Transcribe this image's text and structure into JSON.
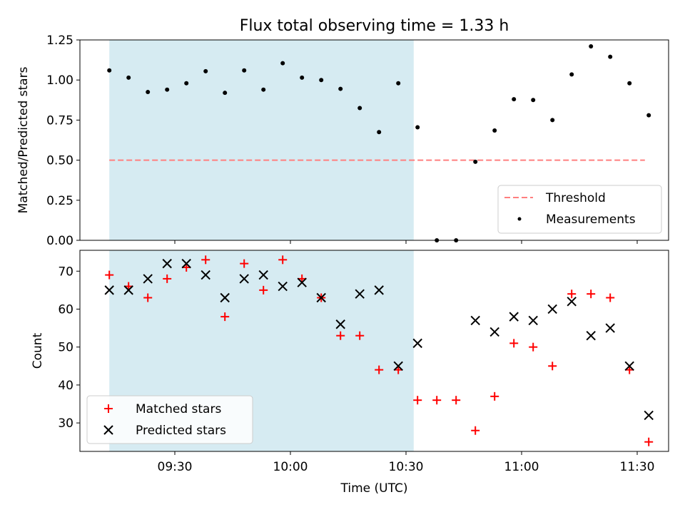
{
  "colors": {
    "shade": "#add8e6",
    "threshold": "#ff7f7f",
    "measurement": "#000000",
    "matched": "#ff0000",
    "predicted": "#000000"
  },
  "chart_data": [
    {
      "type": "scatter",
      "title": "Flux total observing time = 1.33 h",
      "xlabel": "",
      "ylabel": "Matched/Predicted stars",
      "ylim": [
        0,
        1.25
      ],
      "yticks": [
        "0.00",
        "0.25",
        "0.50",
        "0.75",
        "1.00",
        "1.25"
      ],
      "shaded_span": {
        "start": "09:13",
        "end": "10:32"
      },
      "legend_position": "lower-right",
      "threshold": {
        "name": "Threshold",
        "value": 0.5,
        "x_start": "09:13",
        "x_end": "11:32",
        "style": "dashed"
      },
      "series": [
        {
          "name": "Measurements",
          "marker": "dot",
          "x": [
            "09:13",
            "09:18",
            "09:23",
            "09:28",
            "09:33",
            "09:38",
            "09:43",
            "09:48",
            "09:53",
            "09:58",
            "10:03",
            "10:08",
            "10:13",
            "10:18",
            "10:23",
            "10:28",
            "10:33",
            "10:38",
            "10:43",
            "10:48",
            "10:53",
            "10:58",
            "11:03",
            "11:08",
            "11:13",
            "11:18",
            "11:23",
            "11:28",
            "11:33"
          ],
          "y": [
            1.06,
            1.015,
            0.925,
            0.94,
            0.98,
            1.055,
            0.92,
            1.06,
            0.94,
            1.105,
            1.015,
            1.0,
            0.945,
            0.825,
            0.675,
            0.98,
            0.705,
            0.0,
            0.0,
            0.49,
            0.685,
            0.88,
            0.875,
            0.75,
            1.035,
            1.21,
            1.145,
            0.98,
            0.78
          ]
        }
      ]
    },
    {
      "type": "scatter",
      "title": "",
      "xlabel": "Time (UTC)",
      "ylabel": "Count",
      "ylim": [
        22.5,
        75.5
      ],
      "yticks": [
        "30",
        "40",
        "50",
        "60",
        "70"
      ],
      "xticks": [
        "09:30",
        "10:00",
        "10:30",
        "11:00",
        "11:30"
      ],
      "shaded_span": {
        "start": "09:13",
        "end": "10:32"
      },
      "legend_position": "lower-left",
      "series": [
        {
          "name": "Matched stars",
          "marker": "plus",
          "x": [
            "09:13",
            "09:18",
            "09:23",
            "09:28",
            "09:33",
            "09:38",
            "09:43",
            "09:48",
            "09:53",
            "09:58",
            "10:03",
            "10:08",
            "10:13",
            "10:18",
            "10:23",
            "10:28",
            "10:33",
            "10:38",
            "10:43",
            "10:48",
            "10:53",
            "10:58",
            "11:03",
            "11:08",
            "11:13",
            "11:18",
            "11:23",
            "11:28",
            "11:33"
          ],
          "y": [
            69,
            66,
            63,
            68,
            71,
            73,
            58,
            72,
            65,
            73,
            68,
            63,
            53,
            53,
            44,
            44,
            36,
            36,
            36,
            28,
            37,
            51,
            50,
            45,
            64,
            64,
            63,
            44,
            25
          ]
        },
        {
          "name": "Predicted stars",
          "marker": "x",
          "x": [
            "09:13",
            "09:18",
            "09:23",
            "09:28",
            "09:33",
            "09:38",
            "09:43",
            "09:48",
            "09:53",
            "09:58",
            "10:03",
            "10:08",
            "10:13",
            "10:18",
            "10:23",
            "10:28",
            "10:33",
            "10:48",
            "10:53",
            "10:58",
            "11:03",
            "11:08",
            "11:13",
            "11:18",
            "11:23",
            "11:28",
            "11:33"
          ],
          "y": [
            65,
            65,
            68,
            72,
            72,
            69,
            63,
            68,
            69,
            66,
            67,
            63,
            56,
            64,
            65,
            45,
            51,
            57,
            54,
            58,
            57,
            60,
            62,
            53,
            55,
            45,
            32
          ]
        }
      ]
    }
  ]
}
